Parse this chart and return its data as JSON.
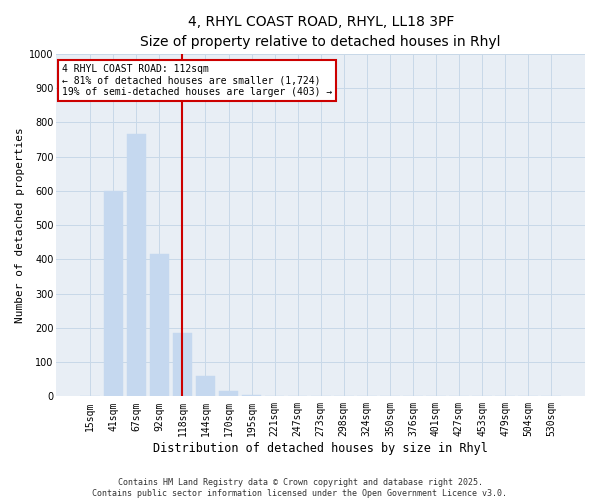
{
  "title_line1": "4, RHYL COAST ROAD, RHYL, LL18 3PF",
  "title_line2": "Size of property relative to detached houses in Rhyl",
  "xlabel": "Distribution of detached houses by size in Rhyl",
  "ylabel": "Number of detached properties",
  "categories": [
    "15sqm",
    "41sqm",
    "67sqm",
    "92sqm",
    "118sqm",
    "144sqm",
    "170sqm",
    "195sqm",
    "221sqm",
    "247sqm",
    "273sqm",
    "298sqm",
    "324sqm",
    "350sqm",
    "376sqm",
    "401sqm",
    "427sqm",
    "453sqm",
    "479sqm",
    "504sqm",
    "530sqm"
  ],
  "values": [
    0,
    600,
    765,
    415,
    185,
    60,
    15,
    5,
    2,
    1,
    0,
    0,
    0,
    0,
    0,
    0,
    0,
    0,
    0,
    0,
    0
  ],
  "bar_color": "#c5d8ef",
  "bar_edge_color": "#c5d8ef",
  "vline_color": "#cc0000",
  "vline_index": 4,
  "annotation_text": "4 RHYL COAST ROAD: 112sqm\n← 81% of detached houses are smaller (1,724)\n19% of semi-detached houses are larger (403) →",
  "annotation_box_color": "#cc0000",
  "ylim": [
    0,
    1000
  ],
  "yticks": [
    0,
    100,
    200,
    300,
    400,
    500,
    600,
    700,
    800,
    900,
    1000
  ],
  "grid_color": "#c8d8e8",
  "background_color": "#e8eef5",
  "footer_line1": "Contains HM Land Registry data © Crown copyright and database right 2025.",
  "footer_line2": "Contains public sector information licensed under the Open Government Licence v3.0.",
  "title_fontsize": 10,
  "subtitle_fontsize": 9,
  "axis_label_fontsize": 8,
  "tick_fontsize": 7,
  "footer_fontsize": 6
}
